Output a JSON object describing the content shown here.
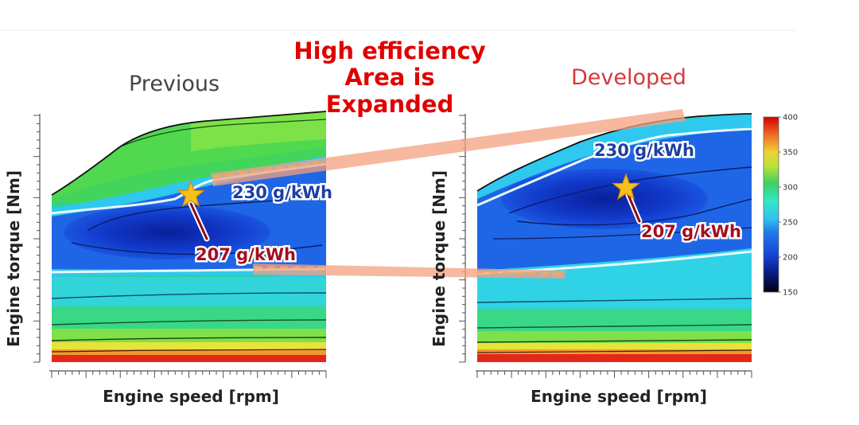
{
  "headline": {
    "line1": "High efficiency",
    "line2": "Area is",
    "line3": "Expanded",
    "color": "#e00000"
  },
  "chart_data": [
    {
      "type": "heatmap",
      "title": "Previous",
      "title_color": "#444444",
      "xlabel": "Engine speed [rpm]",
      "ylabel": "Engine torque [Nm]",
      "annotations": [
        {
          "label": "230 g/kWh",
          "value": 230
        },
        {
          "label": "207 g/kWh",
          "value": 207
        }
      ],
      "optimum_marker": "star"
    },
    {
      "type": "heatmap",
      "title": "Developed",
      "title_color": "#d43a3a",
      "xlabel": "Engine speed [rpm]",
      "ylabel": "Engine torque [Nm]",
      "annotations": [
        {
          "label": "230 g/kWh",
          "value": 230
        },
        {
          "label": "207 g/kWh",
          "value": 207
        }
      ],
      "optimum_marker": "star"
    }
  ],
  "colorbar": {
    "ticks": [
      "400",
      "350",
      "300",
      "250",
      "200",
      "150"
    ],
    "range": [
      150,
      400
    ],
    "colors": [
      "#000010",
      "#0b2fb8",
      "#1f63e8",
      "#2fb9ee",
      "#36e0d8",
      "#3ed061",
      "#d8e53a",
      "#f2b632",
      "#ea4b22",
      "#d30000"
    ]
  }
}
